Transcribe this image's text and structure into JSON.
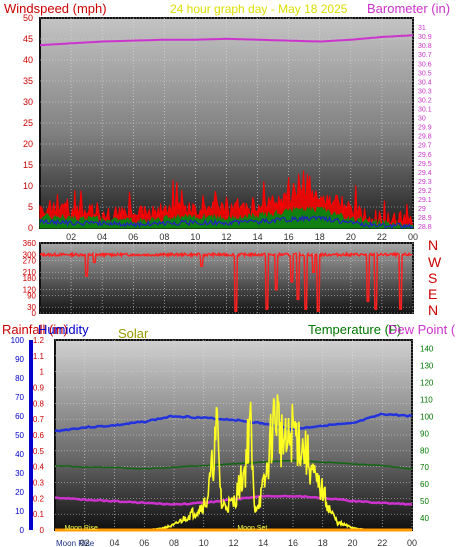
{
  "header": {
    "windspeed_label": "Windspeed (mph)",
    "title": "24 hour graph day - May 18 2025",
    "barometer_label": "Barometer (in)"
  },
  "direction_labels": [
    "N",
    "W",
    "S",
    "E",
    "N"
  ],
  "bottom_labels": {
    "rainfall": "Rainfall (in)",
    "humidity": "Humidity",
    "solar": "Solar",
    "temperature": "Temperature (F)",
    "dew_point": "Dew Point (F)"
  },
  "moon": {
    "rise_label": "Moon Rise",
    "set_label": "Moon Set"
  },
  "colors": {
    "wind": "#ff0000",
    "gust": "#ff0000",
    "wind_avg_blue": "#2020c0",
    "wind_green": "#108010",
    "barometer": "#cc33cc",
    "direction": "#ff2020",
    "humidity": "#2233dd",
    "solar": "#ffff22",
    "temperature": "#116611",
    "dew_point": "#cc33cc",
    "rain": "#ff9900",
    "rain_axis": "#cc0000",
    "hum_axis": "#0000cc",
    "temp_axis": "#007700"
  },
  "chart_data": [
    {
      "type": "line",
      "panel": "wind-barometer",
      "x_ticks": [
        "02",
        "04",
        "06",
        "08",
        "10",
        "12",
        "14",
        "16",
        "18",
        "20",
        "22",
        "00"
      ],
      "y_left": {
        "label": "Windspeed (mph)",
        "range": [
          0,
          50
        ],
        "ticks": [
          "0",
          "5",
          "10",
          "15",
          "20",
          "25",
          "30",
          "35",
          "40",
          "45",
          "50"
        ]
      },
      "y_right": {
        "label": "Barometer (in)",
        "range": [
          28.78,
          31.1
        ],
        "ticks": [
          "28.8",
          "28.9",
          "29",
          "29.1",
          "29.2",
          "29.3",
          "29.4",
          "29.5",
          "29.6",
          "29.7",
          "29.8",
          "29.9",
          "30",
          "30.1",
          "30.2",
          "30.3",
          "30.4",
          "30.5",
          "30.6",
          "30.7",
          "30.8",
          "30.9",
          "31"
        ]
      },
      "series": [
        {
          "hours": [
            0,
            2,
            4,
            6,
            8,
            10,
            12,
            14,
            16,
            18,
            20,
            22,
            24
          ],
          "values": [
            5,
            4,
            3.5,
            3,
            4,
            4.5,
            4,
            5,
            7,
            8,
            4,
            2,
            1.5
          ]
        },
        {
          "hours": [
            0,
            2,
            4,
            6,
            8,
            10,
            12,
            14,
            16,
            18,
            20,
            22,
            24
          ],
          "values": [
            30.8,
            30.82,
            30.84,
            30.85,
            30.86,
            30.86,
            30.87,
            30.86,
            30.85,
            30.84,
            30.86,
            30.89,
            30.91
          ]
        }
      ]
    },
    {
      "type": "scatter",
      "panel": "wind-direction",
      "y_left": {
        "range": [
          0,
          360
        ],
        "ticks": [
          "0",
          "90",
          "180",
          "270",
          "360"
        ],
        "ticks_all": [
          "0",
          "30",
          "90",
          "120",
          "180",
          "210",
          "270",
          "300",
          "360"
        ]
      },
      "series": [
        {
          "baseline_degrees": 300,
          "dips": [
            [
              3.0,
              190
            ],
            [
              3.5,
              260
            ],
            [
              10.4,
              240
            ],
            [
              12.6,
              10
            ],
            [
              14.6,
              20
            ],
            [
              15.2,
              120
            ],
            [
              16.2,
              160
            ],
            [
              16.6,
              70
            ],
            [
              17.1,
              20
            ],
            [
              17.6,
              210
            ],
            [
              17.9,
              10
            ],
            [
              21.1,
              60
            ],
            [
              21.6,
              20
            ],
            [
              23.2,
              20
            ]
          ]
        }
      ]
    },
    {
      "type": "line",
      "panel": "rain-humidity-solar-temp",
      "x_ticks": [
        "02",
        "04",
        "06",
        "08",
        "10",
        "12",
        "14",
        "16",
        "18",
        "20",
        "22",
        "00"
      ],
      "y_rain": {
        "range": [
          0,
          1.2
        ],
        "ticks": [
          "0",
          "0.1",
          "0.2",
          "0.3",
          "0.4",
          "0.5",
          "0.6",
          "0.7",
          "0.8",
          "0.9",
          "1",
          "1.1",
          "1.2"
        ]
      },
      "y_humidity": {
        "range": [
          0,
          100
        ],
        "ticks": [
          "0",
          "10",
          "20",
          "30",
          "40",
          "50",
          "60",
          "70",
          "80",
          "90",
          "100"
        ]
      },
      "y_temp": {
        "range": [
          33,
          145
        ],
        "ticks": [
          "40",
          "50",
          "60",
          "70",
          "80",
          "90",
          "100",
          "110",
          "120",
          "130",
          "140"
        ]
      },
      "series": [
        {
          "hours": [
            0,
            2,
            4,
            6,
            8,
            10,
            12,
            14,
            16,
            18,
            20,
            22,
            24
          ],
          "values": [
            52,
            54,
            55,
            57,
            60,
            59,
            58,
            56,
            53,
            55,
            56,
            61,
            60
          ]
        },
        {
          "hours": [
            0,
            2,
            4,
            6,
            8,
            10,
            12,
            14,
            16,
            18,
            20,
            22,
            24
          ],
          "values": [
            71,
            70,
            70,
            69,
            70,
            71,
            72,
            73,
            74,
            73,
            72,
            71,
            69
          ]
        },
        {
          "hours": [
            0,
            2,
            4,
            6,
            8,
            10,
            12,
            14,
            16,
            18,
            20,
            22,
            24
          ],
          "values": [
            52,
            51,
            50,
            49,
            48,
            49,
            51,
            53,
            53,
            52,
            50,
            49,
            48
          ]
        },
        {
          "hours": [
            6.0,
            7.0,
            8.0,
            9.0,
            9.5,
            10.2,
            10.5,
            10.9,
            11.2,
            12.0,
            12.8,
            13.1,
            13.4,
            13.8,
            14.2,
            14.6,
            14.9,
            15.2,
            15.6,
            16.0,
            16.5,
            17.0,
            17.5,
            18.0,
            18.5,
            19.0,
            20.0,
            21.0
          ],
          "values": [
            0,
            5,
            20,
            60,
            80,
            120,
            230,
            420,
            100,
            110,
            260,
            480,
            90,
            130,
            220,
            420,
            500,
            380,
            340,
            420,
            360,
            300,
            200,
            160,
            80,
            30,
            10,
            0
          ]
        },
        {
          "hours": [
            0,
            24
          ],
          "values": [
            0,
            0
          ]
        }
      ],
      "moon_rise_hour": 0.5,
      "moon_set_hour": 13.2
    }
  ]
}
